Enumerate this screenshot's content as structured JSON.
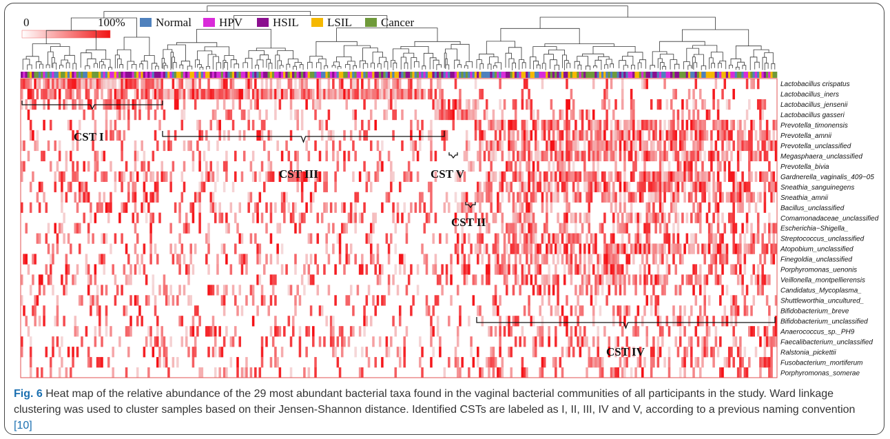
{
  "legend": {
    "scale_min": "0",
    "scale_max": "100%",
    "groups": [
      {
        "label": "Normal",
        "color": "#4f81bd"
      },
      {
        "label": "HPV",
        "color": "#d92bd9"
      },
      {
        "label": "HSIL",
        "color": "#8b0f8f"
      },
      {
        "label": "LSIL",
        "color": "#f5b800"
      },
      {
        "label": "Cancer",
        "color": "#6f9a3a"
      }
    ]
  },
  "chart_data": {
    "type": "heatmap",
    "value_unit": "relative abundance (%)",
    "color_scale": {
      "min": 0,
      "max": 100,
      "low_color": "#ffffff",
      "high_color": "#f01414"
    },
    "rows": [
      "Lactobacillus crispatus",
      "Lactobacillus_iners",
      "Lactobacillus_jensenii",
      "Lactobacillus gasseri",
      "Prevotella_timonensis",
      "Prevotella_amnii",
      "Prevotella_unclassified",
      "Megasphaera_unclassified",
      "Prevotella_bivia",
      "Gardnerella_vaginalis_409−05",
      "Sneathia_sanguinegens",
      "Sneathia_amnii",
      "Bacillus_unclassified",
      "Comamonadaceae_unclassified",
      "Escherichia−Shigella_",
      "Streptococcus_unclassified",
      "Atopobium_unclassified",
      "Finegoldia_unclassified",
      "Porphyromonas_uenonis",
      "Veillonella_montpellierensis",
      "Candidatus_Mycoplasma_",
      "Shuttleworthia_uncultured_",
      "Bifidobacterium_breve",
      "Bifidobacterium_unclassified",
      "Anaerococcus_sp._PH9",
      "Faecalibacterium_unclassified",
      "Ralstonia_pickettii",
      "Fusobacterium_mortiferum",
      "Porphyromonas_somerae"
    ],
    "clusters": [
      {
        "label": "CST I",
        "dominant_rows": [
          0
        ]
      },
      {
        "label": "CST III",
        "dominant_rows": [
          1
        ]
      },
      {
        "label": "CST V",
        "dominant_rows": [
          2
        ]
      },
      {
        "label": "CST II",
        "dominant_rows": [
          3
        ]
      },
      {
        "label": "CST IV",
        "dominant_rows": [
          4,
          5,
          6,
          7,
          9,
          10,
          11,
          16
        ]
      }
    ],
    "sample_group_order": [
      "Normal",
      "HPV",
      "HSIL",
      "LSIL",
      "Cancer"
    ]
  },
  "caption": {
    "fig_label": "Fig. 6",
    "text": " Heat map of the relative abundance of the 29 most abundant bacterial taxa found in the vaginal bacterial communities of all participants in the study. Ward linkage clustering was used to cluster samples based on their Jensen-Shannon distance. Identified CSTs are labeled as I, II, III, IV and V, according to a previous naming convention ",
    "ref": "[10]"
  }
}
